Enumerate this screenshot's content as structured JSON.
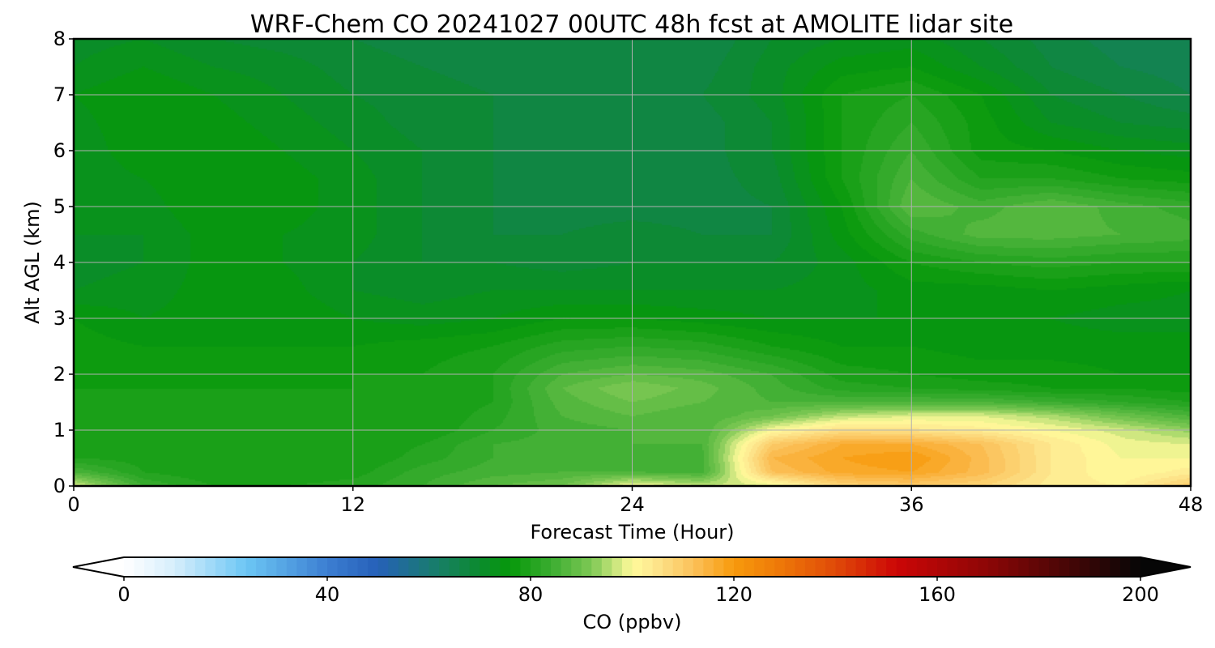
{
  "chart_data": {
    "type": "heatmap",
    "title": "WRF-Chem CO  20241027 00UTC 48h fcst at AMOLITE lidar site",
    "xlabel": "Forecast Time (Hour)",
    "ylabel": "Alt AGL (km)",
    "xlim": [
      0,
      48
    ],
    "ylim": [
      0,
      8
    ],
    "xticks": [
      "0",
      "12",
      "24",
      "36",
      "48"
    ],
    "yticks": [
      "0",
      "1",
      "2",
      "3",
      "4",
      "5",
      "6",
      "7",
      "8"
    ],
    "grid": true,
    "x": [
      0,
      3,
      6,
      9,
      12,
      15,
      18,
      21,
      24,
      27,
      30,
      33,
      36,
      39,
      42,
      45,
      48
    ],
    "y": [
      0,
      0.25,
      0.5,
      0.75,
      1,
      1.25,
      1.5,
      1.75,
      2,
      2.5,
      3,
      3.5,
      4,
      4.5,
      5,
      5.5,
      6,
      6.5,
      7,
      7.5,
      8
    ],
    "z": [
      [
        98,
        84,
        80,
        80,
        81,
        84,
        88,
        90,
        100,
        96,
        98,
        108,
        110,
        108,
        103,
        102,
        110
      ],
      [
        86,
        80,
        78,
        78,
        79,
        83,
        85,
        86,
        86,
        85,
        112,
        117,
        118,
        113,
        104,
        100,
        103
      ],
      [
        80,
        79,
        78,
        78,
        78,
        81,
        84,
        85,
        84,
        85,
        114,
        118,
        120,
        113,
        104,
        100,
        100
      ],
      [
        79,
        78,
        78,
        78,
        78,
        80,
        84,
        85,
        86,
        86,
        110,
        116,
        116,
        112,
        104,
        99,
        98
      ],
      [
        78,
        78,
        78,
        78,
        78,
        78,
        82,
        85,
        86,
        86,
        100,
        106,
        105,
        103,
        100,
        97,
        93
      ],
      [
        78,
        78,
        78,
        78,
        78,
        78,
        81,
        86,
        88,
        86,
        90,
        96,
        98,
        98,
        95,
        90,
        86
      ],
      [
        78,
        78,
        78,
        78,
        78,
        78,
        80,
        87,
        90,
        88,
        86,
        86,
        86,
        86,
        84,
        82,
        80
      ],
      [
        78,
        78,
        78,
        78,
        78,
        78,
        80,
        88,
        92,
        89,
        85,
        81,
        80,
        79,
        78,
        78,
        77
      ],
      [
        78,
        77,
        77,
        77,
        78,
        78,
        80,
        86,
        88,
        87,
        84,
        79,
        78,
        77,
        77,
        76,
        76
      ],
      [
        77,
        76,
        76,
        76,
        76,
        77,
        78,
        81,
        82,
        81,
        78,
        76,
        76,
        75,
        75,
        75,
        75
      ],
      [
        76,
        74,
        75,
        76,
        74,
        73,
        74,
        76,
        76,
        75,
        74,
        74,
        74,
        74,
        74,
        73,
        73
      ],
      [
        72,
        73,
        75,
        75,
        72,
        71,
        72,
        72,
        72,
        72,
        72,
        73,
        75,
        75,
        76,
        75,
        74
      ],
      [
        71,
        72,
        75,
        74,
        72,
        70,
        70,
        69,
        70,
        70,
        70,
        73,
        78,
        80,
        81,
        80,
        80
      ],
      [
        72,
        72,
        75,
        74,
        73,
        70,
        68,
        68,
        69,
        68,
        68,
        75,
        83,
        87,
        87,
        86,
        85
      ],
      [
        72,
        73,
        76,
        75,
        73,
        70,
        68,
        67,
        67,
        67,
        68,
        76,
        88,
        85,
        88,
        85,
        83
      ],
      [
        72,
        74,
        76,
        75,
        73,
        70,
        68,
        67,
        67,
        67,
        69,
        78,
        86,
        80,
        80,
        78,
        77
      ],
      [
        72,
        76,
        76,
        74,
        72,
        70,
        68,
        67,
        67,
        67,
        70,
        78,
        84,
        77,
        76,
        74,
        73
      ],
      [
        73,
        76,
        75,
        73,
        71,
        69,
        68,
        67,
        67,
        67,
        70,
        78,
        82,
        77,
        72,
        70,
        69
      ],
      [
        74,
        76,
        74,
        72,
        70,
        69,
        68,
        67,
        67,
        68,
        71,
        78,
        80,
        76,
        70,
        68,
        66
      ],
      [
        72,
        74,
        72,
        71,
        69,
        68,
        67,
        67,
        66,
        67,
        71,
        75,
        76,
        72,
        68,
        66,
        65
      ],
      [
        71,
        72,
        70,
        69,
        68,
        67,
        67,
        66,
        66,
        66,
        70,
        72,
        73,
        70,
        67,
        65,
        65
      ]
    ],
    "colorbar": {
      "label": "CO  (ppbv)",
      "min": 0,
      "max": 200,
      "step": 2,
      "ticks": [
        "0",
        "40",
        "80",
        "120",
        "160",
        "200"
      ],
      "extend": "both",
      "stops": [
        [
          0,
          "#ffffff"
        ],
        [
          10,
          "#d6eefc"
        ],
        [
          24,
          "#6cc6f4"
        ],
        [
          40,
          "#3c7ed2"
        ],
        [
          50,
          "#2660b8"
        ],
        [
          62,
          "#177e66"
        ],
        [
          70,
          "#0b8b2e"
        ],
        [
          76,
          "#06980a"
        ],
        [
          84,
          "#3aac30"
        ],
        [
          92,
          "#7ec854"
        ],
        [
          100,
          "#fffa9a"
        ],
        [
          104,
          "#fde890"
        ],
        [
          112,
          "#fbc15a"
        ],
        [
          120,
          "#f79a0c"
        ],
        [
          128,
          "#ef7c08"
        ],
        [
          140,
          "#e04a08"
        ],
        [
          152,
          "#cc0606"
        ],
        [
          170,
          "#8c0606"
        ],
        [
          185,
          "#4a0606"
        ],
        [
          200,
          "#060606"
        ]
      ]
    }
  }
}
